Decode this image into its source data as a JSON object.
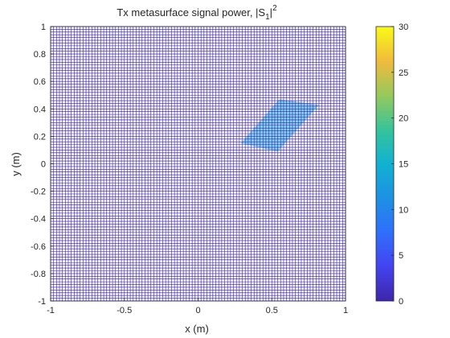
{
  "chart_data": {
    "type": "heatmap",
    "title": "Tx metasurface signal power, |S",
    "title_subscript": "1",
    "title_suffix": "|",
    "title_superscript": "2",
    "xlabel": "x (m)",
    "ylabel": "y (m)",
    "xlim": [
      -1,
      1
    ],
    "ylim": [
      -1,
      1
    ],
    "x_ticks": [
      "-1",
      "-0.5",
      "0",
      "0.5",
      "1"
    ],
    "y_ticks": [
      "-1",
      "-0.8",
      "-0.6",
      "-0.4",
      "-0.2",
      "0",
      "0.2",
      "0.4",
      "0.6",
      "0.8",
      "1"
    ],
    "grid_cells": 100,
    "background_value": 0,
    "highlight_region": {
      "value": 12,
      "corners": [
        [
          0.29,
          0.15
        ],
        [
          0.55,
          0.47
        ],
        [
          0.82,
          0.43
        ],
        [
          0.54,
          0.09
        ]
      ]
    },
    "colorbar": {
      "min": 0,
      "max": 30,
      "ticks": [
        "0",
        "5",
        "10",
        "15",
        "20",
        "25",
        "30"
      ],
      "colormap": "parula"
    }
  },
  "colors": {
    "grid_line": "#3e26a8",
    "cell_background": "#f4f4fb",
    "region_fill": "#7fd4f0",
    "axis": "#262626"
  }
}
